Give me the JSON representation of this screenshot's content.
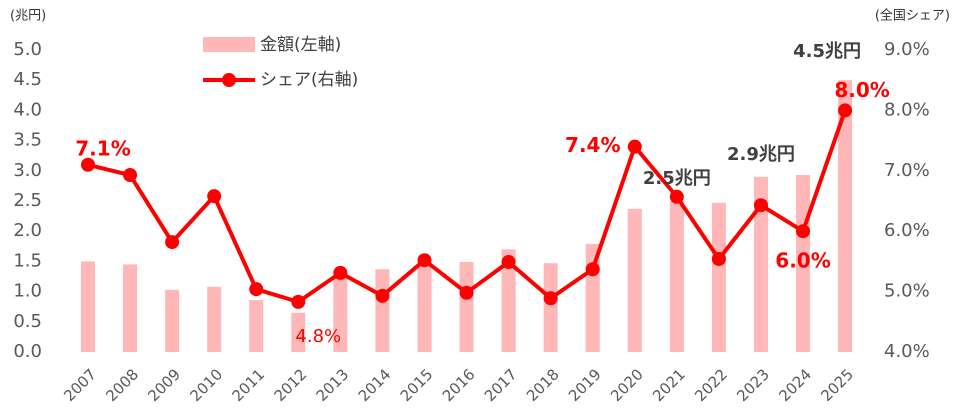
{
  "chart_data": {
    "type": "bar-line",
    "y_label": "(兆円)",
    "y2_label": "(全国シェア)",
    "categories": [
      "2007",
      "2008",
      "2009",
      "2010",
      "2011",
      "2012",
      "2013",
      "2014",
      "2015",
      "2016",
      "2017",
      "2018",
      "2019",
      "2020",
      "2021",
      "2022",
      "2023",
      "2024",
      "2025"
    ],
    "series": [
      {
        "name": "金額(左軸)",
        "color": "#ffb7b7",
        "type": "bar",
        "values": [
          1.5,
          1.45,
          1.03,
          1.08,
          0.86,
          0.65,
          1.3,
          1.37,
          1.5,
          1.49,
          1.7,
          1.47,
          1.79,
          2.37,
          2.5,
          2.47,
          2.9,
          2.93,
          4.5
        ],
        "value_labels": [
          null,
          null,
          null,
          null,
          null,
          null,
          null,
          null,
          null,
          null,
          null,
          null,
          null,
          null,
          "2.5兆円",
          null,
          "2.9兆円",
          null,
          "4.5兆円"
        ]
      },
      {
        "name": "シェア(右軸)",
        "color": "#ff0000",
        "type": "line",
        "axis": "y2",
        "values": [
          7.1,
          6.93,
          5.82,
          6.58,
          5.04,
          4.83,
          5.31,
          4.93,
          5.52,
          4.98,
          5.49,
          4.89,
          5.37,
          7.4,
          6.57,
          5.54,
          6.43,
          6.0,
          8.0
        ],
        "value_labels": [
          "7.1%",
          null,
          null,
          null,
          null,
          "4.8%",
          null,
          null,
          null,
          null,
          null,
          null,
          null,
          "7.4%",
          null,
          null,
          null,
          "6.0%",
          "8.0%"
        ]
      }
    ],
    "ylim": [
      0,
      5
    ],
    "yticks": [
      {
        "value": 0,
        "label": "0.0"
      },
      {
        "value": 0.5,
        "label": "0.5"
      },
      {
        "value": 1,
        "label": "1.0"
      },
      {
        "value": 1.5,
        "label": "1.5"
      },
      {
        "value": 2,
        "label": "2.0"
      },
      {
        "value": 2.5,
        "label": "2.5"
      },
      {
        "value": 3,
        "label": "3.0"
      },
      {
        "value": 3.5,
        "label": "3.5"
      },
      {
        "value": 4,
        "label": "4.0"
      },
      {
        "value": 4.5,
        "label": "4.5"
      },
      {
        "value": 5,
        "label": "5.0"
      }
    ],
    "y2lim": [
      4,
      9
    ],
    "y2ticks": [
      {
        "value": 4,
        "label": "4.0%"
      },
      {
        "value": 5,
        "label": "5.0%"
      },
      {
        "value": 6,
        "label": "6.0%"
      },
      {
        "value": 7,
        "label": "7.0%"
      },
      {
        "value": 8,
        "label": "8.0%"
      },
      {
        "value": 9,
        "label": "9.0%"
      }
    ],
    "grid": false,
    "legend": "top-left"
  }
}
